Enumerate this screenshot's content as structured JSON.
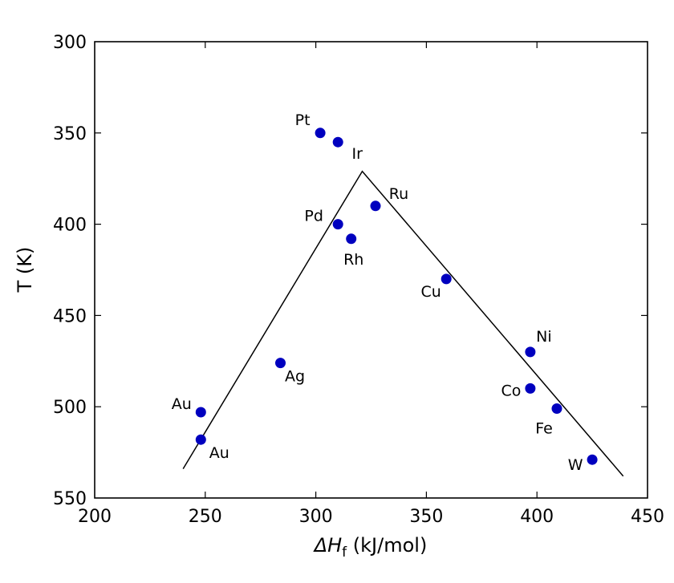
{
  "chart_data": {
    "type": "scatter",
    "xlabel": {
      "prefix": "ΔH",
      "subscript": "f",
      "suffix": " (kJ/mol)"
    },
    "ylabel": "T (K)",
    "xlim": [
      200,
      450
    ],
    "ylim": [
      300,
      550
    ],
    "y_inverted": true,
    "grid": false,
    "x_ticks": [
      200,
      250,
      300,
      350,
      400,
      450
    ],
    "y_ticks": [
      300,
      350,
      400,
      450,
      500,
      550
    ],
    "series": [
      {
        "points": [
          {
            "label": "Pt",
            "x": 302,
            "y": 350
          },
          {
            "label": "Ir",
            "x": 310,
            "y": 355
          },
          {
            "label": "Ru",
            "x": 327,
            "y": 390
          },
          {
            "label": "Pd",
            "x": 310,
            "y": 400
          },
          {
            "label": "Rh",
            "x": 316,
            "y": 408
          },
          {
            "label": "Cu",
            "x": 359,
            "y": 430
          },
          {
            "label": "Ni",
            "x": 397,
            "y": 470
          },
          {
            "label": "Ag",
            "x": 284,
            "y": 476
          },
          {
            "label": "Co",
            "x": 397,
            "y": 490
          },
          {
            "label": "Fe",
            "x": 409,
            "y": 501
          },
          {
            "label": "Au",
            "x": 248,
            "y": 503
          },
          {
            "label": "Au",
            "x": 248,
            "y": 518
          },
          {
            "label": "W",
            "x": 425,
            "y": 529
          }
        ]
      }
    ],
    "lines": [
      {
        "points": [
          [
            240,
            534
          ],
          [
            321,
            371
          ],
          [
            439,
            538
          ]
        ]
      }
    ],
    "colors": {
      "points": "#0000bf",
      "line": "#000000",
      "axes": "#000000"
    }
  }
}
